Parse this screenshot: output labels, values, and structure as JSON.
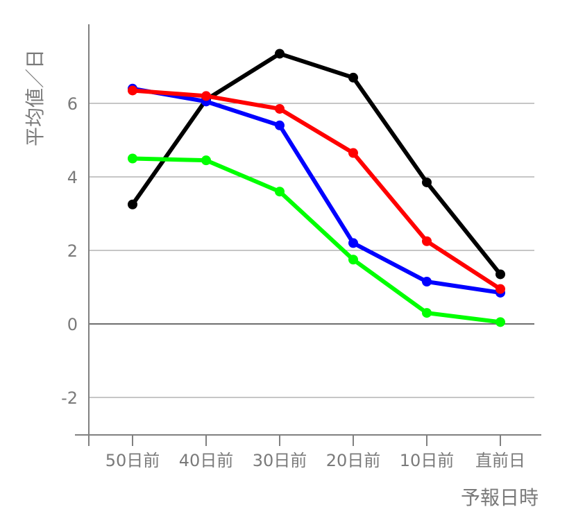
{
  "chart_data": {
    "type": "line",
    "xlabel": "予報日時",
    "ylabel": "平均値／日",
    "categories": [
      "50日前",
      "40日前",
      "30日前",
      "20日前",
      "10日前",
      "直前日"
    ],
    "ylim": [
      -3,
      8
    ],
    "yticks": [
      -2,
      0,
      2,
      4,
      6
    ],
    "grid": true,
    "series": [
      {
        "color": "#000000",
        "values": [
          3.25,
          6.1,
          7.35,
          6.7,
          3.85,
          1.35
        ]
      },
      {
        "color": "#0000ff",
        "values": [
          6.4,
          6.05,
          5.4,
          2.2,
          1.15,
          0.85
        ]
      },
      {
        "color": "#ff0000",
        "values": [
          6.35,
          6.2,
          5.85,
          4.65,
          2.25,
          0.95
        ]
      },
      {
        "color": "#00ff00",
        "values": [
          4.5,
          4.45,
          3.6,
          1.75,
          0.3,
          0.05
        ]
      }
    ]
  }
}
